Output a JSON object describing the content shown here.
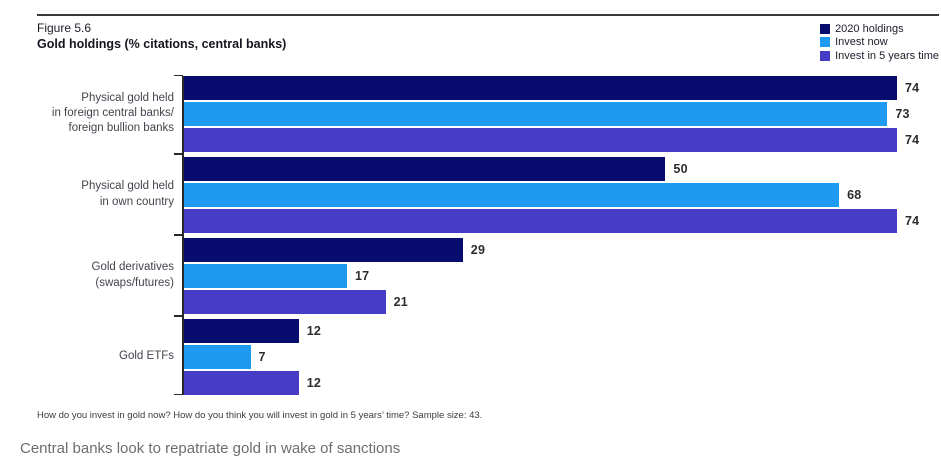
{
  "figure": {
    "label": "Figure 5.6",
    "title": "Gold holdings (% citations, central banks)"
  },
  "chart_data": {
    "type": "bar",
    "orientation": "horizontal",
    "title": "Gold holdings (% citations, central banks)",
    "categories": [
      "Physical gold held\nin foreign central banks/\nforeign bullion banks",
      "Physical gold held\nin own country",
      "Gold derivatives\n(swaps/futures)",
      "Gold ETFs"
    ],
    "series": [
      {
        "name": "2020 holdings",
        "color": "#070C6E",
        "values": [
          74,
          50,
          29,
          12
        ]
      },
      {
        "name": "Invest now",
        "color": "#1E9BF0",
        "values": [
          73,
          68,
          17,
          7
        ]
      },
      {
        "name": "Invest in 5 years time",
        "color": "#473CC6",
        "values": [
          74,
          74,
          21,
          12
        ]
      }
    ],
    "xlim": [
      0,
      74
    ],
    "value_labels": true,
    "grid": false,
    "legend_position": "top-right"
  },
  "footnote": "How do you invest in gold now? How do you think you will invest in gold in 5 years’ time? Sample size: 43.",
  "caption": "Central banks look to repatriate gold in wake of sanctions"
}
